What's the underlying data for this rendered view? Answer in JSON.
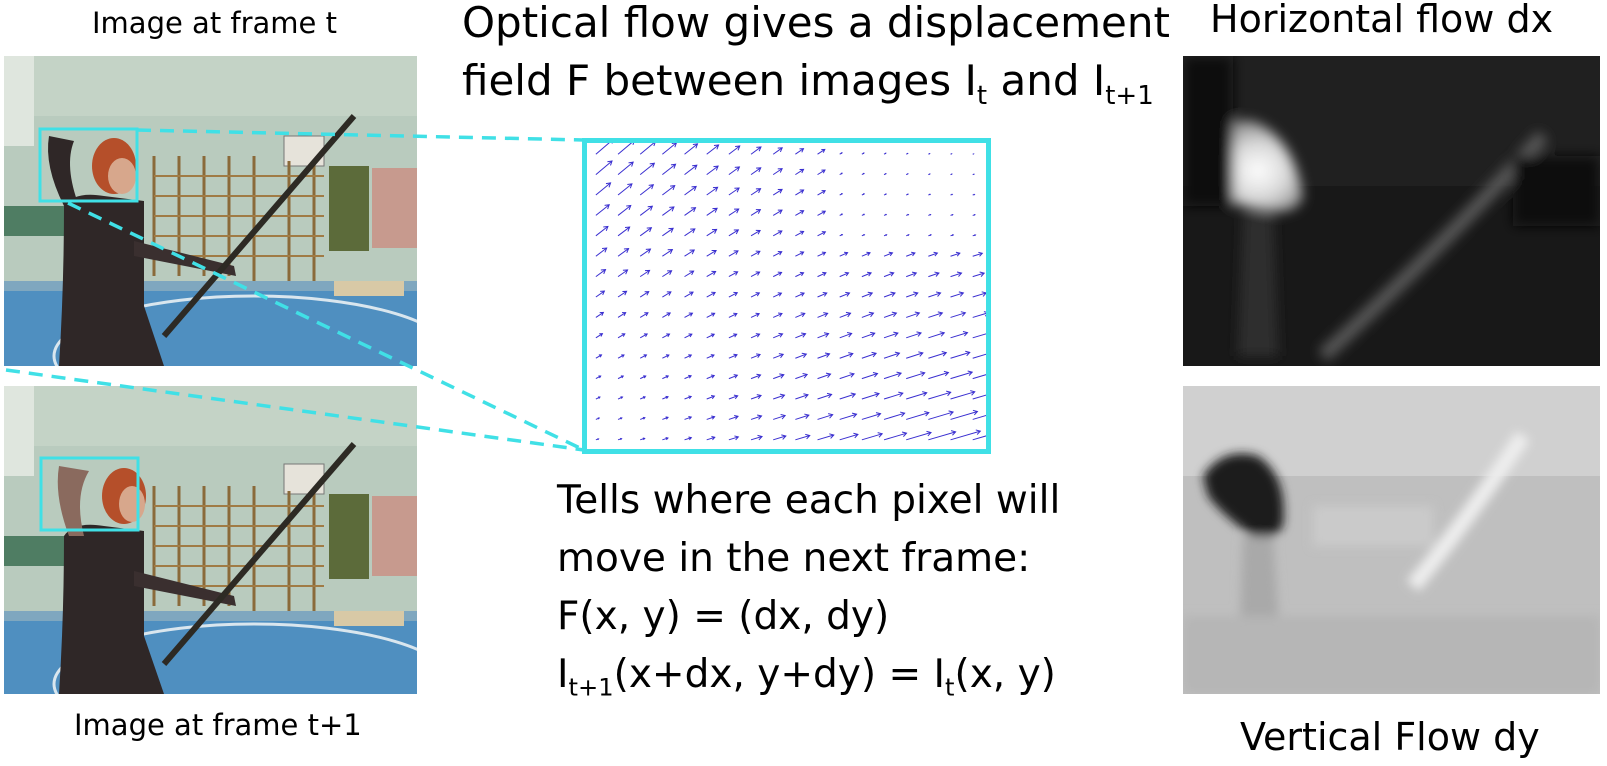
{
  "left": {
    "top_caption": "Image at frame t",
    "bottom_caption": "Image at frame t+1"
  },
  "center": {
    "title_line1": "Optical flow gives a displacement",
    "title_line2_prefix": "field F between images I",
    "title_line2_sub1": "t",
    "title_line2_mid": " and I",
    "title_line2_sub2": "t+1",
    "desc_line1": "Tells where each pixel will",
    "desc_line2": "move in the next frame:",
    "desc_line3": "F(x, y) = (dx, dy)",
    "desc_line4_prefix": "I",
    "desc_line4_sub1": "t+1",
    "desc_line4_mid": "(x+dx, y+dy) = I",
    "desc_line4_sub2": "t",
    "desc_line4_suffix": "(x, y)"
  },
  "right": {
    "top_caption": "Horizontal flow dx",
    "bottom_caption": "Vertical Flow dy"
  },
  "colors": {
    "highlight": "#40e0e6",
    "arrow": "#3a2fd0"
  }
}
